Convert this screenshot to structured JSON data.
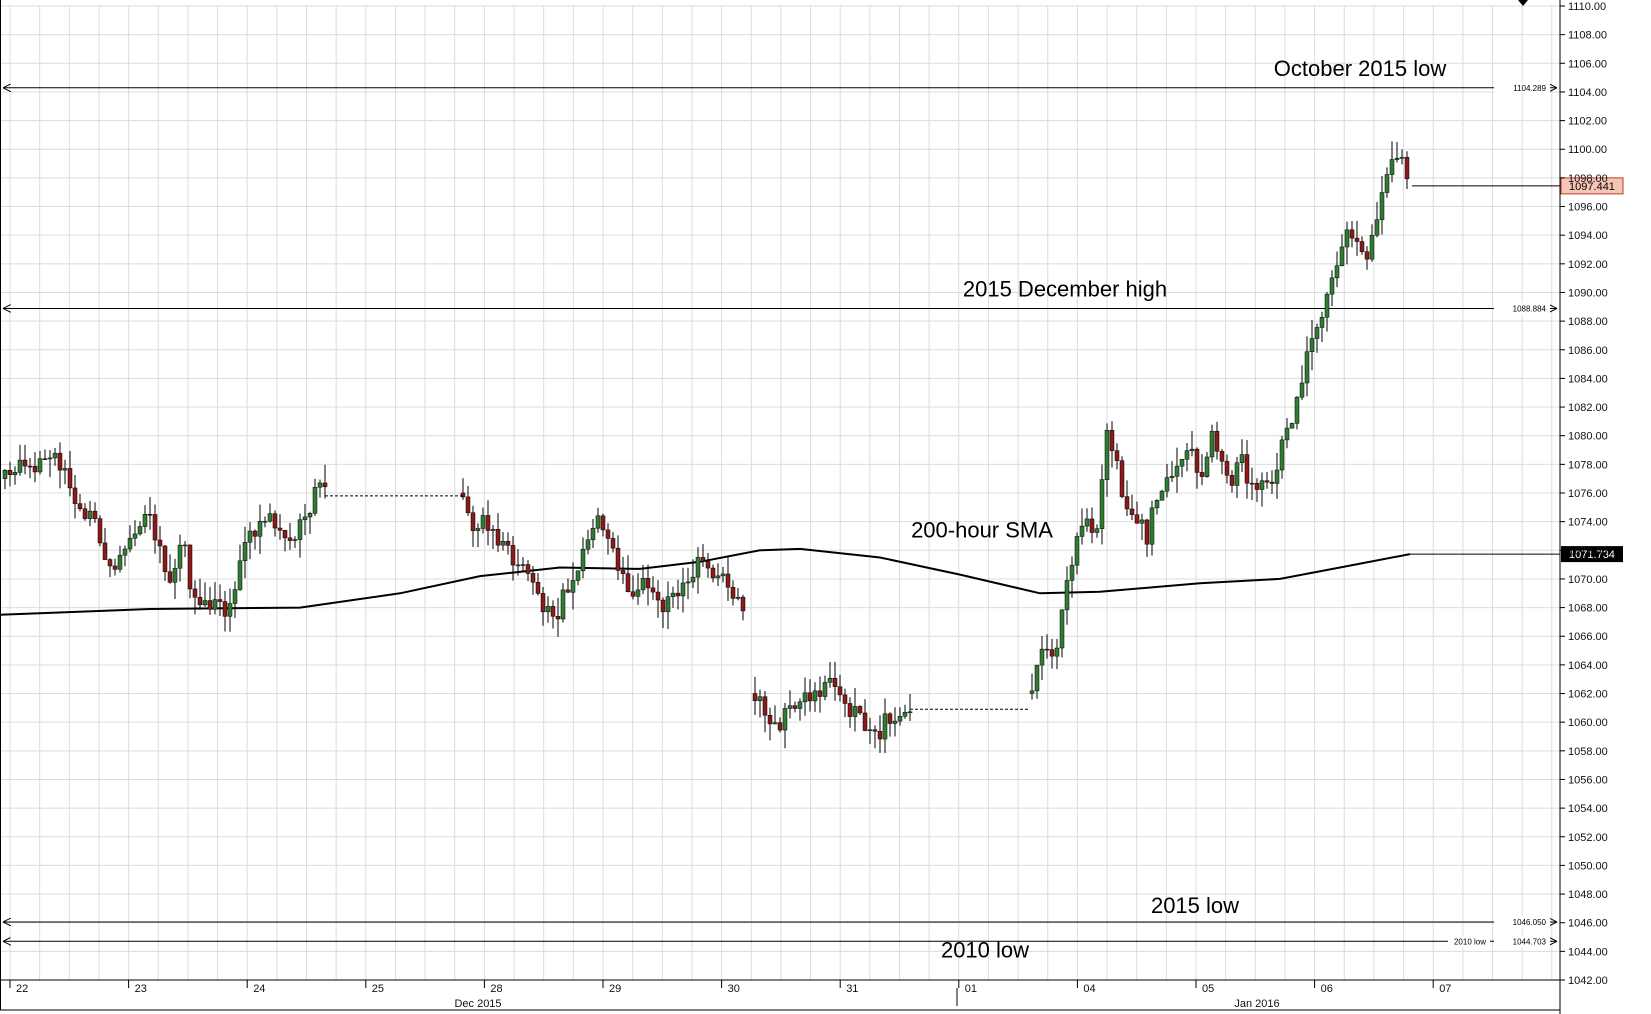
{
  "chart_data": {
    "type": "candlestick",
    "title": "",
    "xlabel": "",
    "ylabel": "",
    "ylim": [
      1042,
      1110
    ],
    "y_ticks": [
      "1042.00",
      "1044.00",
      "1046.00",
      "1048.00",
      "1050.00",
      "1052.00",
      "1054.00",
      "1056.00",
      "1058.00",
      "1060.00",
      "1062.00",
      "1064.00",
      "1066.00",
      "1068.00",
      "1070.00",
      "1072.00",
      "1074.00",
      "1076.00",
      "1078.00",
      "1080.00",
      "1082.00",
      "1084.00",
      "1086.00",
      "1088.00",
      "1090.00",
      "1092.00",
      "1094.00",
      "1096.00",
      "1098.00",
      "1100.00",
      "1102.00",
      "1104.00",
      "1106.00",
      "1108.00",
      "1110.00"
    ],
    "date_labels": [
      "22",
      "23",
      "24",
      "25",
      "28",
      "29",
      "30",
      "31",
      "01",
      "04",
      "05",
      "06",
      "07"
    ],
    "month_labels": [
      "Dec 2015",
      "Jan 2016"
    ],
    "grid": true,
    "levels": [
      {
        "label": "October 2015 low",
        "value": 1104.289,
        "value_label": "1104.289"
      },
      {
        "label": "2015 December high",
        "value": 1088.884,
        "value_label": "1088.884"
      },
      {
        "label": "2015 low",
        "value": 1046.05,
        "value_label": "1046.050"
      },
      {
        "label": "2010 low",
        "value": 1044.703,
        "value_label": "1044.703",
        "tag": "2010 low"
      }
    ],
    "sma": {
      "label": "200-hour SMA",
      "current": "1071.734",
      "points": [
        [
          0,
          1067.5
        ],
        [
          150,
          1067.9
        ],
        [
          300,
          1068.0
        ],
        [
          400,
          1069.0
        ],
        [
          480,
          1070.2
        ],
        [
          560,
          1070.8
        ],
        [
          640,
          1070.7
        ],
        [
          700,
          1071.2
        ],
        [
          760,
          1072.0
        ],
        [
          800,
          1072.1
        ],
        [
          880,
          1071.5
        ],
        [
          960,
          1070.3
        ],
        [
          1040,
          1069.0
        ],
        [
          1100,
          1069.1
        ],
        [
          1200,
          1069.7
        ],
        [
          1280,
          1070.0
        ],
        [
          1340,
          1070.8
        ],
        [
          1410,
          1071.734
        ]
      ]
    },
    "price": {
      "current": "1097.441",
      "current_value": 1097.441,
      "segments": [
        {
          "x0": 5,
          "x1": 325,
          "p": [
            1077,
            1078,
            1077,
            1078,
            1079,
            1078,
            1076,
            1075,
            1074,
            1072,
            1071,
            1073,
            1074,
            1075,
            1072,
            1070,
            1073,
            1069,
            1068,
            1069,
            1068,
            1070,
            1073,
            1074,
            1074,
            1073,
            1072,
            1074,
            1076,
            1077
          ]
        },
        {
          "x0": 463,
          "x1": 745,
          "p": [
            1076,
            1073,
            1074,
            1073,
            1072,
            1071,
            1070,
            1068,
            1067,
            1069,
            1070,
            1073,
            1074,
            1073,
            1070,
            1069,
            1070,
            1069,
            1068,
            1069,
            1070,
            1071,
            1070,
            1070,
            1069,
            1067
          ]
        },
        {
          "x0": 755,
          "x1": 910,
          "p": [
            1062,
            1060,
            1060,
            1061,
            1062,
            1062,
            1063,
            1062,
            1061,
            1060,
            1059,
            1060,
            1060,
            1061
          ]
        },
        {
          "x0": 1032,
          "x1": 1410,
          "p": [
            1062,
            1065,
            1064,
            1068,
            1072,
            1074,
            1072,
            1080,
            1078,
            1075,
            1074,
            1073,
            1076,
            1077,
            1078,
            1079,
            1077,
            1080,
            1078,
            1077,
            1078,
            1076,
            1077,
            1077,
            1080,
            1082,
            1085,
            1087,
            1090,
            1092,
            1094,
            1093,
            1092,
            1096,
            1099,
            1100,
            1097.4
          ]
        }
      ],
      "gap_lines": [
        {
          "x0": 325,
          "x1": 463,
          "value": 1075.8
        },
        {
          "x0": 910,
          "x1": 1030,
          "value": 1060.9
        }
      ]
    }
  }
}
